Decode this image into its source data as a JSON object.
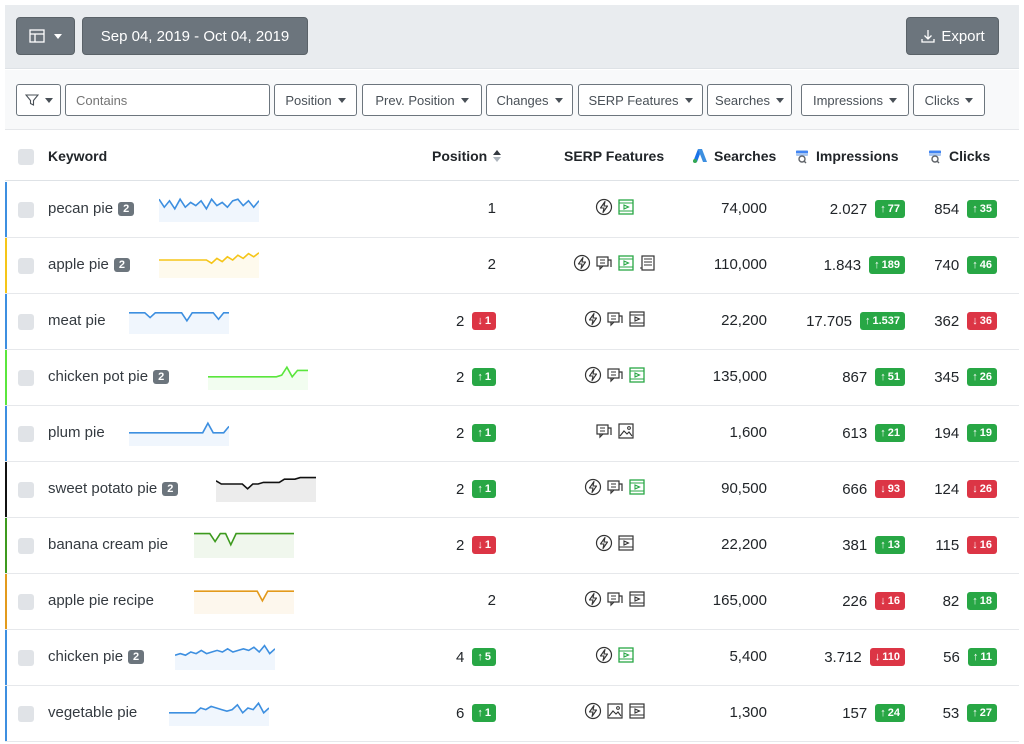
{
  "toolbar": {
    "date_range": "Sep 04, 2019 - Oct 04, 2019",
    "export_label": "Export"
  },
  "filters": {
    "contains_placeholder": "Contains",
    "position": "Position",
    "prev_position": "Prev. Position",
    "changes": "Changes",
    "serp_features": "SERP Features",
    "searches": "Searches",
    "impressions": "Impressions",
    "clicks": "Clicks"
  },
  "columns": {
    "keyword": "Keyword",
    "position": "Position",
    "serp": "SERP Features",
    "searches": "Searches",
    "impressions": "Impressions",
    "clicks": "Clicks"
  },
  "colors": {
    "up": "#28a745",
    "down": "#dc3545",
    "badge": "#6c757d"
  },
  "rows": [
    {
      "keyword": "pecan pie",
      "count": "2",
      "color": "#3d8fe0",
      "position": "1",
      "pos_change": null,
      "serp": [
        "amp-icon",
        "video-icon-green"
      ],
      "searches": "74,000",
      "impressions": "2.027",
      "impr_change": {
        "dir": "up",
        "val": "77"
      },
      "clicks": "854",
      "clicks_change": {
        "dir": "up",
        "val": "35"
      },
      "spark": [
        0.2,
        0.7,
        0.3,
        0.8,
        0.2,
        0.7,
        0.4,
        0.6,
        0.3,
        0.8,
        0.2,
        0.6,
        0.4,
        0.7,
        0.3,
        0.2,
        0.6,
        0.3,
        0.7,
        0.3
      ]
    },
    {
      "keyword": "apple pie",
      "count": "2",
      "color": "#f5c518",
      "position": "2",
      "pos_change": null,
      "serp": [
        "amp-icon",
        "chat-icon",
        "video-icon-green",
        "article-icon"
      ],
      "searches": "110,000",
      "impressions": "1.843",
      "impr_change": {
        "dir": "up",
        "val": "189"
      },
      "clicks": "740",
      "clicks_change": {
        "dir": "up",
        "val": "46"
      },
      "spark": [
        0.5,
        0.5,
        0.5,
        0.5,
        0.5,
        0.5,
        0.5,
        0.5,
        0.5,
        0.5,
        0.7,
        0.4,
        0.6,
        0.3,
        0.5,
        0.2,
        0.4,
        0.1,
        0.3,
        0.05
      ]
    },
    {
      "keyword": "meat pie",
      "count": "",
      "color": "#3d8fe0",
      "position": "2",
      "pos_change": {
        "dir": "down",
        "val": "1"
      },
      "serp": [
        "amp-icon",
        "chat-icon",
        "video-icon"
      ],
      "searches": "22,200",
      "impressions": "17.705",
      "impr_change": {
        "dir": "up",
        "val": "1.537"
      },
      "clicks": "362",
      "clicks_change": {
        "dir": "down",
        "val": "36"
      },
      "spark": [
        0.3,
        0.3,
        0.3,
        0.3,
        0.6,
        0.3,
        0.3,
        0.3,
        0.3,
        0.3,
        0.3,
        0.8,
        0.3,
        0.3,
        0.3,
        0.3,
        0.3,
        0.7,
        0.3,
        0.3
      ]
    },
    {
      "keyword": "chicken pot pie",
      "count": "2",
      "color": "#5ae63c",
      "position": "2",
      "pos_change": {
        "dir": "up",
        "val": "1"
      },
      "serp": [
        "amp-icon",
        "chat-icon",
        "video-icon-green"
      ],
      "searches": "135,000",
      "impressions": "867",
      "impr_change": {
        "dir": "up",
        "val": "51"
      },
      "clicks": "345",
      "clicks_change": {
        "dir": "up",
        "val": "26"
      },
      "spark": [
        0.8,
        0.8,
        0.8,
        0.8,
        0.8,
        0.8,
        0.8,
        0.8,
        0.8,
        0.8,
        0.8,
        0.8,
        0.8,
        0.8,
        0.7,
        0.2,
        0.8,
        0.4,
        0.4,
        0.4
      ]
    },
    {
      "keyword": "plum pie",
      "count": "",
      "color": "#3d8fe0",
      "position": "2",
      "pos_change": {
        "dir": "up",
        "val": "1"
      },
      "serp": [
        "chat-icon",
        "image-icon"
      ],
      "searches": "1,600",
      "impressions": "613",
      "impr_change": {
        "dir": "up",
        "val": "21"
      },
      "clicks": "194",
      "clicks_change": {
        "dir": "up",
        "val": "19"
      },
      "spark": [
        0.8,
        0.8,
        0.8,
        0.8,
        0.8,
        0.8,
        0.8,
        0.8,
        0.8,
        0.8,
        0.8,
        0.8,
        0.8,
        0.8,
        0.8,
        0.2,
        0.8,
        0.8,
        0.8,
        0.4
      ]
    },
    {
      "keyword": "sweet potato pie",
      "count": "2",
      "color": "#111111",
      "position": "2",
      "pos_change": {
        "dir": "up",
        "val": "1"
      },
      "serp": [
        "amp-icon",
        "chat-icon",
        "video-icon-green"
      ],
      "searches": "90,500",
      "impressions": "666",
      "impr_change": {
        "dir": "down",
        "val": "93"
      },
      "clicks": "124",
      "clicks_change": {
        "dir": "down",
        "val": "26"
      },
      "spark": [
        0.3,
        0.5,
        0.5,
        0.5,
        0.5,
        0.5,
        0.8,
        0.5,
        0.5,
        0.4,
        0.4,
        0.4,
        0.4,
        0.2,
        0.2,
        0.2,
        0.1,
        0.1,
        0.1,
        0.1
      ]
    },
    {
      "keyword": "banana cream pie",
      "count": "",
      "color": "#3d9a1e",
      "position": "2",
      "pos_change": {
        "dir": "down",
        "val": "1"
      },
      "serp": [
        "amp-icon",
        "video-icon"
      ],
      "searches": "22,200",
      "impressions": "381",
      "impr_change": {
        "dir": "up",
        "val": "13"
      },
      "clicks": "115",
      "clicks_change": {
        "dir": "down",
        "val": "16"
      },
      "spark": [
        0.1,
        0.1,
        0.1,
        0.1,
        0.6,
        0.1,
        0.1,
        0.8,
        0.1,
        0.1,
        0.1,
        0.1,
        0.1,
        0.1,
        0.1,
        0.1,
        0.1,
        0.1,
        0.1,
        0.1
      ]
    },
    {
      "keyword": "apple pie recipe",
      "count": "",
      "color": "#e39a1c",
      "position": "2",
      "pos_change": null,
      "serp": [
        "amp-icon",
        "chat-icon",
        "video-icon"
      ],
      "searches": "165,000",
      "impressions": "226",
      "impr_change": {
        "dir": "down",
        "val": "16"
      },
      "clicks": "82",
      "clicks_change": {
        "dir": "up",
        "val": "18"
      },
      "spark": [
        0.2,
        0.2,
        0.2,
        0.2,
        0.2,
        0.2,
        0.2,
        0.2,
        0.2,
        0.2,
        0.2,
        0.2,
        0.2,
        0.8,
        0.2,
        0.2,
        0.2,
        0.2,
        0.2,
        0.2
      ]
    },
    {
      "keyword": "chicken pie",
      "count": "2",
      "color": "#3d8fe0",
      "position": "4",
      "pos_change": {
        "dir": "up",
        "val": "5"
      },
      "serp": [
        "amp-icon",
        "video-icon-green"
      ],
      "searches": "5,400",
      "impressions": "3.712",
      "impr_change": {
        "dir": "down",
        "val": "110"
      },
      "clicks": "56",
      "clicks_change": {
        "dir": "up",
        "val": "11"
      },
      "spark": [
        0.7,
        0.6,
        0.7,
        0.5,
        0.6,
        0.4,
        0.6,
        0.5,
        0.4,
        0.5,
        0.3,
        0.5,
        0.4,
        0.3,
        0.4,
        0.2,
        0.5,
        0.1,
        0.6,
        0.3
      ]
    },
    {
      "keyword": "vegetable pie",
      "count": "",
      "color": "#3d8fe0",
      "position": "6",
      "pos_change": {
        "dir": "up",
        "val": "1"
      },
      "serp": [
        "amp-icon",
        "image-icon",
        "video-icon"
      ],
      "searches": "1,300",
      "impressions": "157",
      "impr_change": {
        "dir": "up",
        "val": "24"
      },
      "clicks": "53",
      "clicks_change": {
        "dir": "up",
        "val": "27"
      },
      "spark": [
        0.8,
        0.8,
        0.8,
        0.8,
        0.8,
        0.8,
        0.5,
        0.6,
        0.4,
        0.5,
        0.6,
        0.7,
        0.6,
        0.3,
        0.8,
        0.5,
        0.6,
        0.2,
        0.8,
        0.5
      ]
    }
  ]
}
